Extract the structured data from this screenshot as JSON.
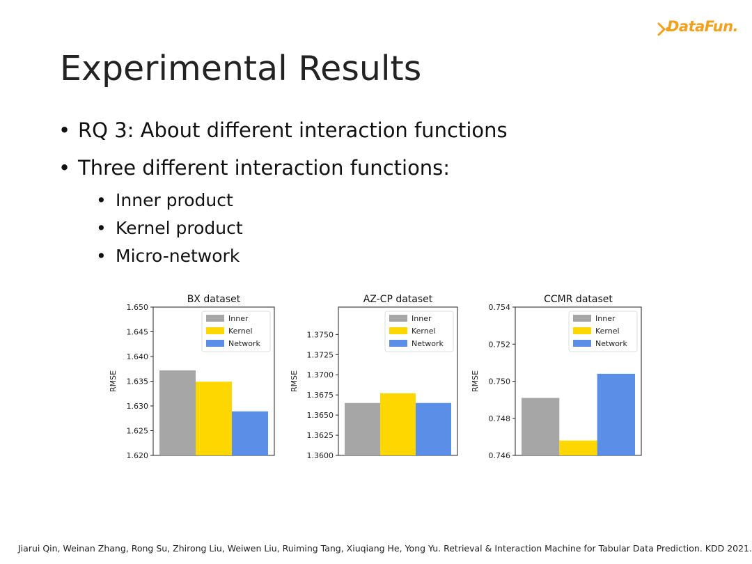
{
  "brand": {
    "name": "DataFun.",
    "color": "#f0a21e"
  },
  "slide": {
    "title": "Experimental Results",
    "bullets": [
      {
        "text": "RQ 3: About different interaction functions"
      },
      {
        "text": "Three different interaction functions:"
      }
    ],
    "subbullets": [
      {
        "text": "Inner product"
      },
      {
        "text": "Kernel product"
      },
      {
        "text": "Micro-network"
      }
    ],
    "footnote": "Jiarui Qin, Weinan Zhang, Rong Su, Zhirong Liu, Weiwen Liu, Ruiming Tang, Xiuqiang He, Yong Yu. Retrieval & Interaction Machine for Tabular Data Prediction. KDD 2021."
  },
  "chart_data": [
    {
      "type": "bar",
      "title": "BX dataset",
      "ylabel": "RMSE",
      "xlabel": "",
      "ylim": [
        1.62,
        1.65
      ],
      "yticks": [
        "1.620",
        "1.625",
        "1.630",
        "1.635",
        "1.640",
        "1.645",
        "1.650"
      ],
      "legend_position": "top-right",
      "series": [
        {
          "name": "Inner",
          "value": 1.6372,
          "color": "#a6a6a6"
        },
        {
          "name": "Kernel",
          "value": 1.6349,
          "color": "#ffd700"
        },
        {
          "name": "Network",
          "value": 1.6289,
          "color": "#5b8ee6"
        }
      ]
    },
    {
      "type": "bar",
      "title": "AZ-CP dataset",
      "ylabel": "RMSE",
      "xlabel": "",
      "ylim": [
        1.36,
        1.3784
      ],
      "yticks": [
        "1.3600",
        "1.3625",
        "1.3650",
        "1.3675",
        "1.3700",
        "1.3725",
        "1.3750"
      ],
      "legend_position": "top-right",
      "series": [
        {
          "name": "Inner",
          "value": 1.3665,
          "color": "#a6a6a6"
        },
        {
          "name": "Kernel",
          "value": 1.3677,
          "color": "#ffd700"
        },
        {
          "name": "Network",
          "value": 1.3665,
          "color": "#5b8ee6"
        }
      ]
    },
    {
      "type": "bar",
      "title": "CCMR dataset",
      "ylabel": "RMSE",
      "xlabel": "",
      "ylim": [
        0.746,
        0.754
      ],
      "yticks": [
        "0.746",
        "0.748",
        "0.750",
        "0.752",
        "0.754"
      ],
      "legend_position": "top-right",
      "series": [
        {
          "name": "Inner",
          "value": 0.7491,
          "color": "#a6a6a6"
        },
        {
          "name": "Kernel",
          "value": 0.7468,
          "color": "#ffd700"
        },
        {
          "name": "Network",
          "value": 0.7504,
          "color": "#5b8ee6"
        }
      ]
    }
  ]
}
